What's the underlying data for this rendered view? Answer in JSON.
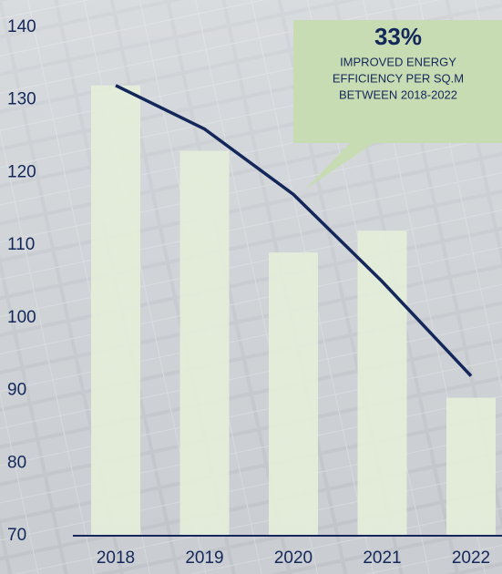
{
  "chart_data": {
    "type": "bar",
    "categories": [
      "2018",
      "2019",
      "2020",
      "2021",
      "2022"
    ],
    "series": [
      {
        "type": "bar",
        "color": "#e4eed9",
        "values": [
          132,
          123,
          109,
          112,
          89
        ]
      },
      {
        "type": "line",
        "color": "#14275a",
        "values": [
          132,
          126,
          117,
          105,
          92
        ]
      }
    ],
    "ylim": [
      70,
      140
    ],
    "yticks": [
      70,
      80,
      90,
      100,
      110,
      120,
      130,
      140
    ],
    "annotation": {
      "headline": "33%",
      "lines": [
        "IMPROVED ENERGY",
        "EFFICIENCY PER SQ.M",
        "BETWEEN 2018-2022"
      ]
    }
  }
}
